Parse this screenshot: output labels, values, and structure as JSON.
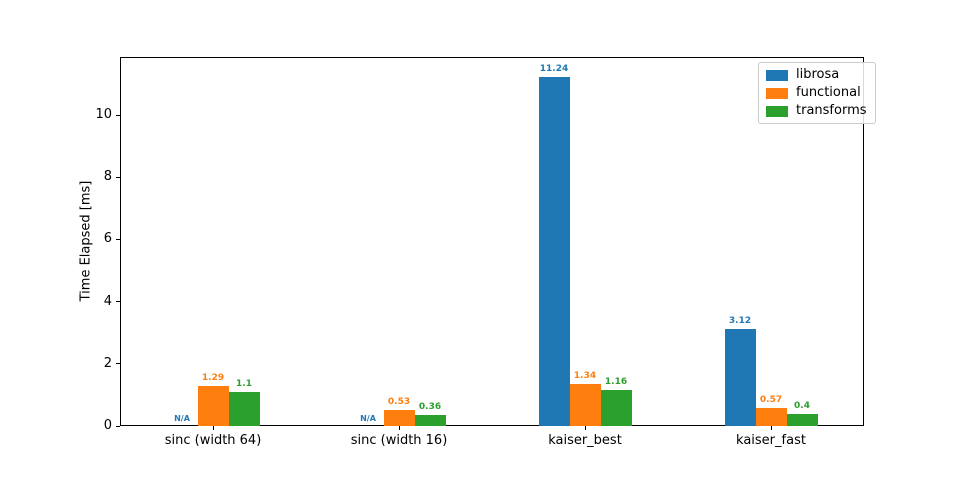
{
  "figure": {
    "background": "#ffffff",
    "axis_color": "#000000"
  },
  "chart_data": {
    "type": "bar",
    "title": "",
    "xlabel": "",
    "ylabel": "Time Elapsed [ms]",
    "categories": [
      "sinc (width 64)",
      "sinc (width 16)",
      "kaiser_best",
      "kaiser_fast"
    ],
    "series": [
      {
        "name": "librosa",
        "color": "#1f77b4",
        "values": [
          null,
          null,
          11.24,
          3.12
        ]
      },
      {
        "name": "functional",
        "color": "#ff7f0e",
        "values": [
          1.29,
          0.53,
          1.34,
          0.57
        ]
      },
      {
        "name": "transforms",
        "color": "#2ca02c",
        "values": [
          1.1,
          0.36,
          1.16,
          0.4
        ]
      }
    ],
    "na_label": "N/A",
    "value_labels_shown": true,
    "yticks": [
      0,
      2,
      4,
      6,
      8,
      10
    ],
    "ylim": [
      0,
      11.87
    ],
    "grid": false,
    "legend_position": "upper right"
  }
}
